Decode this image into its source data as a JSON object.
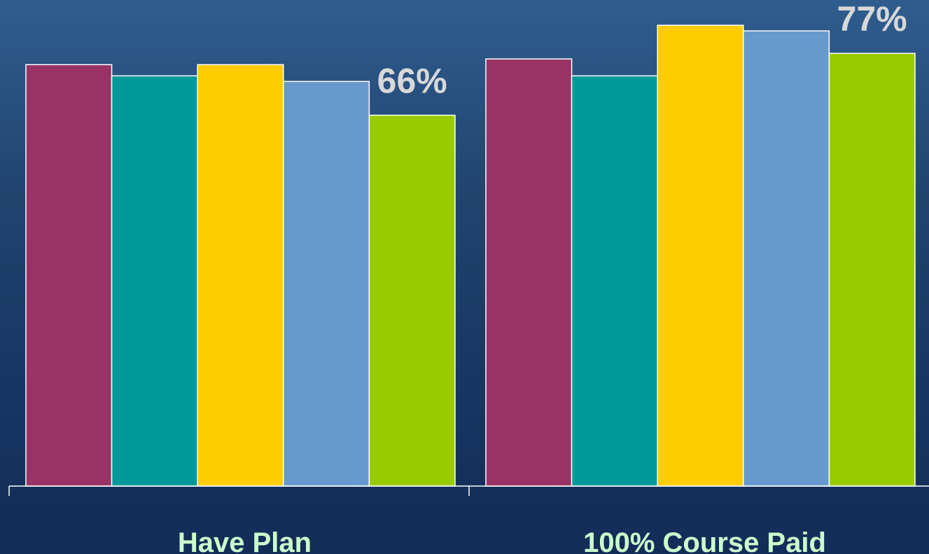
{
  "chart_data": {
    "type": "bar",
    "categories": [
      "Have Plan",
      "100% Course Paid"
    ],
    "series": [
      {
        "color": "#993366",
        "values": [
          75,
          76
        ]
      },
      {
        "color": "#009999",
        "values": [
          73,
          73
        ]
      },
      {
        "color": "#ffcc00",
        "values": [
          75,
          82
        ]
      },
      {
        "color": "#6699cc",
        "values": [
          72,
          81
        ]
      },
      {
        "color": "#99cc00",
        "values": [
          66,
          77
        ]
      }
    ],
    "data_labels": [
      {
        "category_index": 0,
        "series_index": 4,
        "text": "66%"
      },
      {
        "category_index": 1,
        "series_index": 4,
        "text": "77%"
      }
    ],
    "ylim": [
      0,
      86.5
    ],
    "grid": false,
    "legend": "none",
    "title": "",
    "xlabel": "",
    "ylabel": ""
  }
}
